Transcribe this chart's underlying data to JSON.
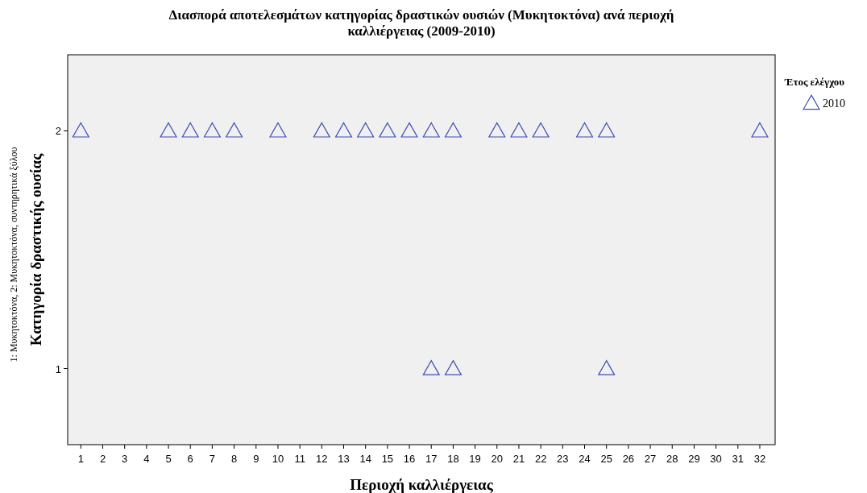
{
  "chart_data": {
    "type": "scatter",
    "title": "Διασπορά αποτελεσμάτων κατηγορίας δραστικών ουσιών (Μυκητοκτόνα) ανά περιοχή καλλιέργειας (2009-2010)",
    "xlabel": "Περιοχή καλλιέργειας",
    "ylabel": "Κατηγορία δραστικής ουσίας",
    "legend_title": "Έτος ελέγχου",
    "annotations": [
      "1: Μυκητοκτόνα, 2: Μυκητοκτόνα, συντηρητικά ξύλου"
    ],
    "series": [
      {
        "name": "2010",
        "color": "#3a4cb8",
        "x": [
          1,
          5,
          6,
          7,
          8,
          10,
          12,
          13,
          14,
          15,
          16,
          17,
          18,
          20,
          21,
          22,
          24,
          25,
          32,
          17,
          18,
          25
        ],
        "values": [
          2,
          2,
          2,
          2,
          2,
          2,
          2,
          2,
          2,
          2,
          2,
          2,
          2,
          2,
          2,
          2,
          2,
          2,
          2,
          1,
          1,
          1
        ]
      }
    ],
    "xlim": [
      0.4,
      32.7
    ],
    "xticks": [
      1,
      2,
      3,
      4,
      5,
      6,
      7,
      8,
      9,
      10,
      11,
      12,
      13,
      14,
      15,
      16,
      17,
      18,
      19,
      20,
      21,
      22,
      23,
      24,
      25,
      26,
      27,
      28,
      29,
      30,
      31,
      32
    ],
    "ylim": [
      0.68,
      2.32
    ],
    "yticks": [
      1,
      2
    ],
    "marker": "triangle",
    "legend": "top right",
    "grid": false
  }
}
